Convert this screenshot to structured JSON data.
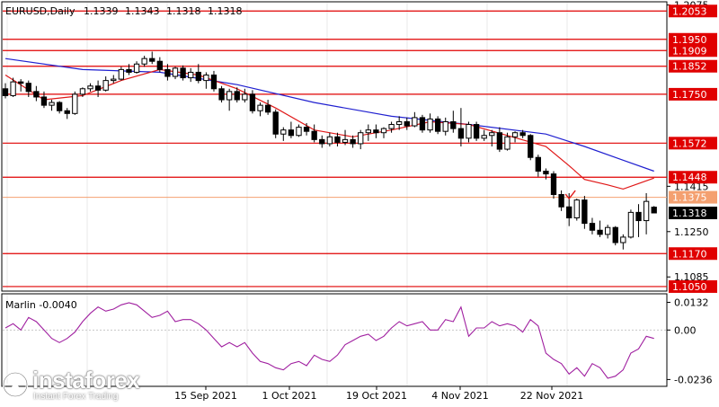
{
  "chart_data": [
    {
      "type": "candlestick",
      "symbol": "EURUSD,Daily",
      "ohlc_header": [
        "1.1339",
        "1.1343",
        "1.1318",
        "1.1318"
      ],
      "y_tick_labels": [
        "1.2075",
        "1.1415",
        "1.1250",
        "1.1085"
      ],
      "ylim": [
        1.104,
        1.208
      ],
      "x_tick_labels": [
        "15 Sep 2021",
        "1 Oct 2021",
        "19 Oct 2021",
        "4 Nov 2021",
        "22 Nov 2021"
      ],
      "levels": [
        {
          "value": 1.2053,
          "label": "1.2053",
          "style": "solid",
          "color": "#e00000"
        },
        {
          "value": 1.195,
          "label": "1.1950",
          "style": "solid",
          "color": "#e00000"
        },
        {
          "value": 1.1909,
          "label": "1.1909",
          "style": "solid",
          "color": "#e00000"
        },
        {
          "value": 1.1852,
          "label": "1.1852",
          "style": "solid",
          "color": "#e00000"
        },
        {
          "value": 1.175,
          "label": "1.1750",
          "style": "solid",
          "color": "#e00000"
        },
        {
          "value": 1.1572,
          "label": "1.1572",
          "style": "solid",
          "color": "#e00000"
        },
        {
          "value": 1.1448,
          "label": "1.1448",
          "style": "solid",
          "color": "#e00000"
        },
        {
          "value": 1.1375,
          "label": "1.1375",
          "style": "thin",
          "color": "#f4a070"
        },
        {
          "value": 1.117,
          "label": "1.1170",
          "style": "solid",
          "color": "#e00000"
        },
        {
          "value": 1.105,
          "label": "1.1050",
          "style": "solid",
          "color": "#e00000"
        }
      ],
      "current_price": {
        "value": 1.1318,
        "label": "1.1318"
      },
      "candles": [
        [
          1.177,
          1.179,
          1.1735,
          1.1745
        ],
        [
          1.1745,
          1.181,
          1.174,
          1.1795
        ],
        [
          1.1795,
          1.1805,
          1.176,
          1.179
        ],
        [
          1.179,
          1.18,
          1.174,
          1.176
        ],
        [
          1.176,
          1.178,
          1.1725,
          1.174
        ],
        [
          1.174,
          1.176,
          1.17,
          1.171
        ],
        [
          1.171,
          1.173,
          1.169,
          1.172
        ],
        [
          1.172,
          1.1725,
          1.168,
          1.169
        ],
        [
          1.169,
          1.17,
          1.166,
          1.168
        ],
        [
          1.168,
          1.176,
          1.1675,
          1.175
        ],
        [
          1.175,
          1.1775,
          1.174,
          1.177
        ],
        [
          1.177,
          1.179,
          1.176,
          1.178
        ],
        [
          1.178,
          1.18,
          1.174,
          1.1765
        ],
        [
          1.1765,
          1.1815,
          1.176,
          1.18
        ],
        [
          1.18,
          1.182,
          1.179,
          1.1805
        ],
        [
          1.1805,
          1.185,
          1.18,
          1.184
        ],
        [
          1.184,
          1.186,
          1.182,
          1.183
        ],
        [
          1.183,
          1.187,
          1.1825,
          1.186
        ],
        [
          1.186,
          1.189,
          1.185,
          1.188
        ],
        [
          1.188,
          1.1905,
          1.186,
          1.187
        ],
        [
          1.187,
          1.1885,
          1.183,
          1.184
        ],
        [
          1.184,
          1.186,
          1.18,
          1.1815
        ],
        [
          1.1815,
          1.185,
          1.1805,
          1.1845
        ],
        [
          1.1845,
          1.1855,
          1.18,
          1.181
        ],
        [
          1.181,
          1.1845,
          1.1795,
          1.183
        ],
        [
          1.183,
          1.186,
          1.179,
          1.18
        ],
        [
          1.18,
          1.183,
          1.177,
          1.182
        ],
        [
          1.182,
          1.1835,
          1.176,
          1.177
        ],
        [
          1.177,
          1.178,
          1.172,
          1.173
        ],
        [
          1.173,
          1.177,
          1.169,
          1.176
        ],
        [
          1.176,
          1.1775,
          1.172,
          1.173
        ],
        [
          1.173,
          1.177,
          1.172,
          1.175
        ],
        [
          1.175,
          1.1765,
          1.168,
          1.169
        ],
        [
          1.169,
          1.172,
          1.167,
          1.171
        ],
        [
          1.171,
          1.173,
          1.1675,
          1.1685
        ],
        [
          1.1685,
          1.1695,
          1.159,
          1.1605
        ],
        [
          1.1605,
          1.163,
          1.158,
          1.162
        ],
        [
          1.162,
          1.165,
          1.159,
          1.16
        ],
        [
          1.16,
          1.164,
          1.1595,
          1.163
        ],
        [
          1.163,
          1.1645,
          1.16,
          1.1615
        ],
        [
          1.1615,
          1.164,
          1.1575,
          1.1585
        ],
        [
          1.1585,
          1.16,
          1.1555,
          1.157
        ],
        [
          1.157,
          1.161,
          1.156,
          1.1595
        ],
        [
          1.1595,
          1.161,
          1.156,
          1.1575
        ],
        [
          1.1575,
          1.162,
          1.1565,
          1.1585
        ],
        [
          1.1585,
          1.16,
          1.1555,
          1.157
        ],
        [
          1.157,
          1.162,
          1.155,
          1.161
        ],
        [
          1.161,
          1.164,
          1.158,
          1.162
        ],
        [
          1.162,
          1.164,
          1.159,
          1.161
        ],
        [
          1.161,
          1.163,
          1.159,
          1.1625
        ],
        [
          1.1625,
          1.165,
          1.161,
          1.164
        ],
        [
          1.164,
          1.167,
          1.162,
          1.165
        ],
        [
          1.165,
          1.1665,
          1.162,
          1.1635
        ],
        [
          1.1635,
          1.1685,
          1.163,
          1.1665
        ],
        [
          1.1665,
          1.1675,
          1.161,
          1.162
        ],
        [
          1.162,
          1.168,
          1.161,
          1.166
        ],
        [
          1.166,
          1.167,
          1.1605,
          1.1615
        ],
        [
          1.1615,
          1.1665,
          1.16,
          1.165
        ],
        [
          1.165,
          1.169,
          1.161,
          1.1625
        ],
        [
          1.1625,
          1.17,
          1.156,
          1.159
        ],
        [
          1.159,
          1.165,
          1.1575,
          1.164
        ],
        [
          1.164,
          1.165,
          1.158,
          1.159
        ],
        [
          1.159,
          1.162,
          1.158,
          1.16
        ],
        [
          1.16,
          1.162,
          1.156,
          1.161
        ],
        [
          1.161,
          1.163,
          1.154,
          1.155
        ],
        [
          1.155,
          1.161,
          1.1545,
          1.1595
        ],
        [
          1.1595,
          1.1615,
          1.1575,
          1.161
        ],
        [
          1.161,
          1.162,
          1.159,
          1.16
        ],
        [
          1.16,
          1.1605,
          1.151,
          1.152
        ],
        [
          1.152,
          1.153,
          1.145,
          1.147
        ],
        [
          1.147,
          1.148,
          1.144,
          1.146
        ],
        [
          1.146,
          1.147,
          1.137,
          1.1385
        ],
        [
          1.1385,
          1.14,
          1.1325,
          1.134
        ],
        [
          1.134,
          1.139,
          1.127,
          1.13
        ],
        [
          1.13,
          1.137,
          1.129,
          1.1365
        ],
        [
          1.1365,
          1.138,
          1.126,
          1.128
        ],
        [
          1.128,
          1.13,
          1.124,
          1.1255
        ],
        [
          1.1255,
          1.129,
          1.123,
          1.124
        ],
        [
          1.124,
          1.1275,
          1.1225,
          1.1265
        ],
        [
          1.1265,
          1.127,
          1.12,
          1.121
        ],
        [
          1.121,
          1.124,
          1.1185,
          1.123
        ],
        [
          1.123,
          1.133,
          1.1225,
          1.132
        ],
        [
          1.132,
          1.135,
          1.123,
          1.129
        ],
        [
          1.129,
          1.139,
          1.124,
          1.136
        ],
        [
          1.1339,
          1.1343,
          1.1318,
          1.1318
        ]
      ],
      "series": [
        {
          "name": "",
          "type": "line",
          "color": "#2020d0",
          "values": [
            [
              0,
              1.188
            ],
            [
              10,
              1.184
            ],
            [
              20,
              1.183
            ],
            [
              30,
              1.1785
            ],
            [
              40,
              1.172
            ],
            [
              50,
              1.167
            ],
            [
              60,
              1.164
            ],
            [
              70,
              1.1605
            ],
            [
              75,
              1.156
            ],
            [
              80,
              1.151
            ],
            [
              84,
              1.147
            ]
          ]
        },
        {
          "name": "",
          "type": "line",
          "color": "#e01818",
          "values": [
            [
              0,
              1.182
            ],
            [
              5,
              1.173
            ],
            [
              10,
              1.1745
            ],
            [
              15,
              1.18
            ],
            [
              20,
              1.184
            ],
            [
              25,
              1.182
            ],
            [
              30,
              1.177
            ],
            [
              35,
              1.17
            ],
            [
              40,
              1.162
            ],
            [
              45,
              1.1595
            ],
            [
              50,
              1.162
            ],
            [
              55,
              1.165
            ],
            [
              60,
              1.164
            ],
            [
              65,
              1.16
            ],
            [
              70,
              1.156
            ],
            [
              73,
              1.149
            ],
            [
              75,
              1.144
            ],
            [
              78,
              1.142
            ],
            [
              80,
              1.1405
            ],
            [
              82,
              1.1425
            ],
            [
              84,
              1.1445
            ]
          ]
        }
      ],
      "annotation": {
        "type": "checkmark",
        "x_index": 73,
        "value": 1.138,
        "color": "#e01818"
      }
    },
    {
      "type": "line",
      "indicator_label": "Marlin -0.0040",
      "y_tick_labels": [
        "0.0132",
        "0.00",
        "-0.0236"
      ],
      "ylim": [
        -0.026,
        0.016
      ],
      "zero_line": 0.0,
      "color": "#a020a0",
      "values": [
        0.001,
        0.003,
        0.0,
        0.006,
        0.004,
        0.0,
        -0.004,
        -0.006,
        -0.004,
        -0.001,
        0.004,
        0.008,
        0.011,
        0.009,
        0.01,
        0.012,
        0.013,
        0.012,
        0.009,
        0.006,
        0.007,
        0.009,
        0.004,
        0.005,
        0.005,
        0.003,
        0.0,
        -0.004,
        -0.008,
        -0.006,
        -0.008,
        -0.006,
        -0.011,
        -0.015,
        -0.016,
        -0.018,
        -0.019,
        -0.016,
        -0.015,
        -0.017,
        -0.012,
        -0.014,
        -0.015,
        -0.012,
        -0.007,
        -0.005,
        -0.003,
        -0.002,
        -0.005,
        -0.003,
        0.001,
        0.004,
        0.002,
        0.003,
        0.004,
        0.0,
        0.0,
        0.005,
        0.004,
        0.011,
        -0.003,
        0.001,
        0.001,
        0.004,
        0.002,
        0.003,
        0.002,
        -0.001,
        0.005,
        0.002,
        -0.011,
        -0.014,
        -0.016,
        -0.021,
        -0.018,
        -0.022,
        -0.016,
        -0.018,
        -0.023,
        -0.022,
        -0.019,
        -0.011,
        -0.009,
        -0.003,
        -0.004
      ]
    }
  ],
  "watermark": {
    "brand": "instaforex",
    "tagline": "Instant Forex Trading"
  }
}
